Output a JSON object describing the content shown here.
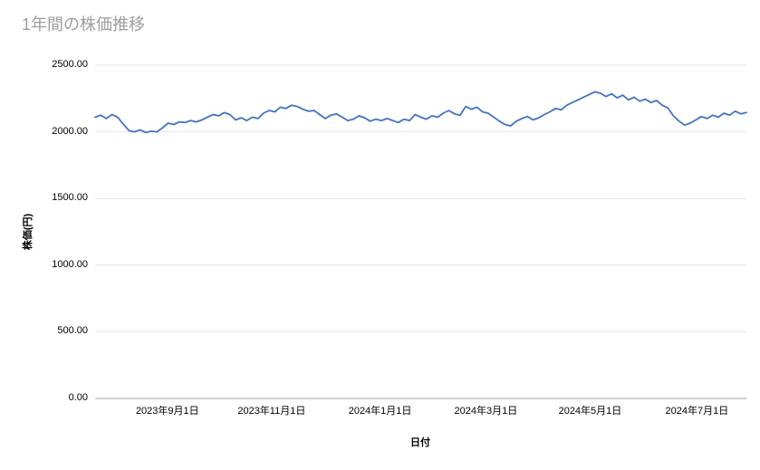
{
  "colors": {
    "title": "#9e9e9e",
    "line": "#4472c4",
    "grid": "#e6e6e6",
    "axis": "#9e9e9e",
    "text": "#000000",
    "background": "#ffffff"
  },
  "chart_data": {
    "type": "line",
    "title": "1年間の株価推移",
    "xlabel": "日付",
    "ylabel": "株価(円)",
    "ylim": [
      0,
      2500
    ],
    "grid": "horizontal",
    "legend": "none",
    "line_color": "#4472c4",
    "y_ticks": [
      {
        "value": 0,
        "label": "0.00"
      },
      {
        "value": 500,
        "label": "500.00"
      },
      {
        "value": 1000,
        "label": "1000.00"
      },
      {
        "value": 1500,
        "label": "1500.00"
      },
      {
        "value": 2000,
        "label": "2000.00"
      },
      {
        "value": 2500,
        "label": "2500.00"
      }
    ],
    "x_ticks": [
      {
        "label": "2023年9月1日",
        "position": 0.111
      },
      {
        "label": "2023年11月1日",
        "position": 0.271
      },
      {
        "label": "2024年1月1日",
        "position": 0.4375
      },
      {
        "label": "2024年3月1日",
        "position": 0.6
      },
      {
        "label": "2024年5月1日",
        "position": 0.76
      },
      {
        "label": "2024年7月1日",
        "position": 0.924
      }
    ],
    "values": [
      2110,
      2125,
      2100,
      2130,
      2110,
      2060,
      2010,
      2000,
      2015,
      1995,
      2005,
      2000,
      2030,
      2065,
      2055,
      2075,
      2070,
      2085,
      2075,
      2090,
      2110,
      2130,
      2120,
      2145,
      2130,
      2090,
      2105,
      2085,
      2110,
      2100,
      2140,
      2160,
      2150,
      2185,
      2175,
      2200,
      2190,
      2170,
      2155,
      2160,
      2130,
      2100,
      2125,
      2135,
      2110,
      2085,
      2095,
      2120,
      2105,
      2080,
      2095,
      2085,
      2100,
      2085,
      2070,
      2095,
      2085,
      2130,
      2110,
      2095,
      2120,
      2110,
      2140,
      2160,
      2135,
      2125,
      2190,
      2170,
      2185,
      2150,
      2140,
      2110,
      2080,
      2055,
      2045,
      2080,
      2100,
      2115,
      2090,
      2105,
      2130,
      2150,
      2175,
      2165,
      2200,
      2220,
      2240,
      2260,
      2280,
      2300,
      2290,
      2265,
      2285,
      2255,
      2275,
      2240,
      2260,
      2230,
      2245,
      2220,
      2235,
      2200,
      2180,
      2120,
      2080,
      2050,
      2065,
      2090,
      2115,
      2100,
      2125,
      2110,
      2140,
      2125,
      2155,
      2135,
      2145
    ]
  }
}
